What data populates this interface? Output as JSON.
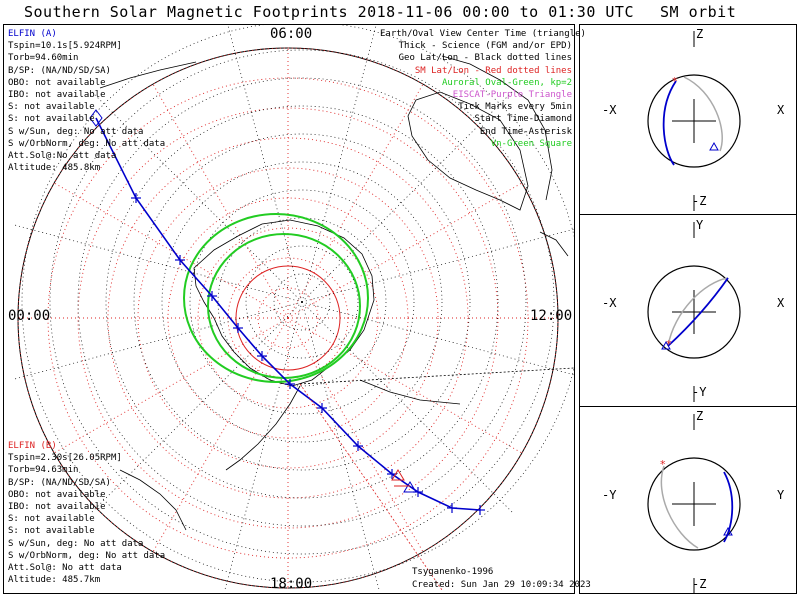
{
  "title": "Southern Solar Magnetic Footprints 2018-11-06 00:00 to 01:30 UTC",
  "sm_orbit_title": "SM orbit",
  "mlt_labels": {
    "top": "06:00",
    "left": "00:00",
    "right": "12:00",
    "bottom": "18:00"
  },
  "elfin_a": {
    "name": "ELFIN (A)",
    "lines": [
      "Tspin=10.1s[5.924RPM]",
      "Torb=94.60min",
      "B/SP: (NA/ND/SD/SA)",
      "OBO: not available",
      "IBO: not available",
      "S: not available",
      "S: not available",
      "S w/Sun, deg: No att data",
      "S w/OrbNorm, deg: No att data",
      "Att.Sol@:No att data",
      "Altitude: 485.8km"
    ]
  },
  "elfin_b": {
    "name": "ELFIN (B)",
    "lines": [
      "Tspin=2.30s[26.05RPM]",
      "Torb=94.63min",
      "B/SP: (NA/ND/SD/SA)",
      "OBO: not available",
      "IBO: not available",
      "S: not available",
      "S: not available",
      "S w/Sun, deg: No att data",
      "S w/OrbNorm, deg: No att data",
      "Att.Sol@: No att data",
      "Altitude: 485.7km"
    ]
  },
  "legend": [
    {
      "text": "Earth/Oval View Center Time (triangle)",
      "color": "#000000"
    },
    {
      "text": "Thick - Science (FGM and/or EPD)",
      "color": "#000000"
    },
    {
      "text": "Geo Lat/Lon - Black dotted lines",
      "color": "#000000"
    },
    {
      "text": "SM Lat/Lon - Red dotted lines",
      "color": "#dd2222"
    },
    {
      "text": "Auroral Oval-Green, kp=2",
      "color": "#22cc22"
    },
    {
      "text": "EISCAT-Purple Triangle",
      "color": "#cc55cc"
    },
    {
      "text": "Tick Marks every 5min",
      "color": "#000000"
    },
    {
      "text": "Start Time-Diamond",
      "color": "#000000"
    },
    {
      "text": "End Time-Asterisk",
      "color": "#000000"
    },
    {
      "text": "Vn-Green Square",
      "color": "#22cc22"
    }
  ],
  "footer": {
    "model": "Tsyganenko-1996",
    "created": "Created: Sun Jan 29 10:09:34 2023"
  },
  "panels": [
    {
      "top": "Z",
      "bottom": "-Z",
      "left": "-X",
      "right": "X"
    },
    {
      "top": "Y",
      "bottom": "-Y",
      "left": "-X",
      "right": "X"
    },
    {
      "top": "Z",
      "bottom": "-Z",
      "left": "-Y",
      "right": "Y"
    }
  ],
  "colors": {
    "elfin_a": "#0000cc",
    "elfin_b": "#dd2222",
    "oval": "#22cc22",
    "sm_grid": "#dd2222"
  },
  "chart_data": {
    "type": "scatter",
    "projection": "polar, southern SM hemisphere",
    "footprint_track_a": {
      "name": "ELFIN (A)",
      "lat_points_deg": [
        [
          -54,
          -28
        ],
        [
          -60,
          -18
        ],
        [
          -66,
          -10
        ],
        [
          -72,
          -3
        ],
        [
          -78,
          3
        ],
        [
          -82,
          10
        ],
        [
          -86,
          30
        ],
        [
          -80,
          78
        ],
        [
          -74,
          92
        ],
        [
          -66,
          104
        ],
        [
          -58,
          110
        ],
        [
          -52,
          116
        ]
      ]
    },
    "footprint_track_b": {
      "name": "ELFIN (B)",
      "lat_points_deg": [
        [
          -60,
          112
        ],
        [
          -56,
          115
        ]
      ]
    },
    "auroral_oval_kp": 2
  }
}
